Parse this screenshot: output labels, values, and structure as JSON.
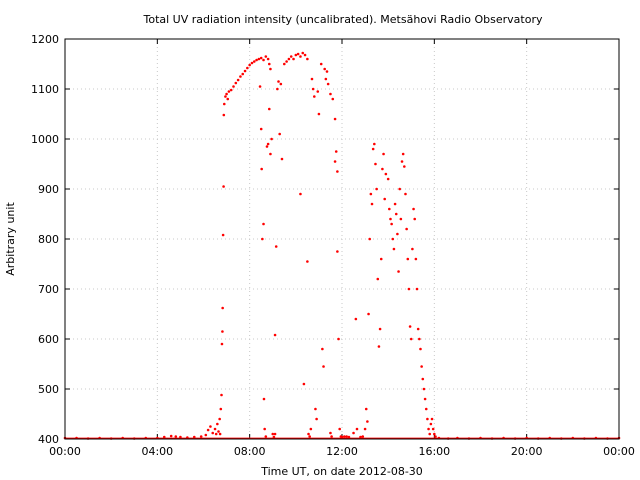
{
  "chart_data": {
    "type": "scatter",
    "title": "Total UV radiation intensity (uncalibrated). Metsähovi Radio Observatory",
    "xlabel": "Time UT, on date 2012-08-30",
    "ylabel": "Arbitrary unit",
    "xlim": [
      0,
      24
    ],
    "ylim": [
      400,
      1200
    ],
    "x_ticks": [
      {
        "value": 0,
        "label": "00:00"
      },
      {
        "value": 4,
        "label": "04:00"
      },
      {
        "value": 8,
        "label": "08:00"
      },
      {
        "value": 12,
        "label": "12:00"
      },
      {
        "value": 16,
        "label": "16:00"
      },
      {
        "value": 20,
        "label": "20:00"
      },
      {
        "value": 24,
        "label": "00:00"
      }
    ],
    "y_ticks": [
      400,
      500,
      600,
      700,
      800,
      900,
      1000,
      1100,
      1200
    ],
    "grid": true,
    "marker_color": "#ff0000",
    "series": [
      {
        "points": [
          [
            0.0,
            402
          ],
          [
            0.5,
            402
          ],
          [
            1.0,
            401
          ],
          [
            1.5,
            402
          ],
          [
            2.0,
            401
          ],
          [
            2.5,
            402
          ],
          [
            3.0,
            401
          ],
          [
            3.5,
            402
          ],
          [
            4.0,
            402
          ],
          [
            4.3,
            404
          ],
          [
            4.6,
            406
          ],
          [
            4.8,
            405
          ],
          [
            5.0,
            404
          ],
          [
            5.3,
            403
          ],
          [
            5.6,
            404
          ],
          [
            5.9,
            405
          ],
          [
            6.1,
            408
          ],
          [
            6.2,
            418
          ],
          [
            6.3,
            425
          ],
          [
            6.4,
            412
          ],
          [
            6.5,
            420
          ],
          [
            6.55,
            410
          ],
          [
            6.6,
            430
          ],
          [
            6.65,
            415
          ],
          [
            6.7,
            440
          ],
          [
            6.72,
            410
          ],
          [
            6.75,
            460
          ],
          [
            6.78,
            488
          ],
          [
            6.8,
            590
          ],
          [
            6.82,
            615
          ],
          [
            6.83,
            662
          ],
          [
            6.85,
            808
          ],
          [
            6.87,
            905
          ],
          [
            6.88,
            1048
          ],
          [
            6.9,
            1070
          ],
          [
            6.95,
            1085
          ],
          [
            7.0,
            1090
          ],
          [
            7.05,
            1080
          ],
          [
            7.1,
            1095
          ],
          [
            7.2,
            1098
          ],
          [
            7.3,
            1105
          ],
          [
            7.4,
            1112
          ],
          [
            7.5,
            1118
          ],
          [
            7.6,
            1125
          ],
          [
            7.7,
            1130
          ],
          [
            7.8,
            1136
          ],
          [
            7.9,
            1142
          ],
          [
            8.0,
            1148
          ],
          [
            8.1,
            1152
          ],
          [
            8.2,
            1155
          ],
          [
            8.3,
            1158
          ],
          [
            8.4,
            1160
          ],
          [
            8.5,
            1162
          ],
          [
            8.6,
            1158
          ],
          [
            8.7,
            1165
          ],
          [
            8.8,
            1160
          ],
          [
            8.85,
            1150
          ],
          [
            8.9,
            1140
          ],
          [
            8.45,
            1105
          ],
          [
            8.5,
            1020
          ],
          [
            8.52,
            940
          ],
          [
            8.55,
            800
          ],
          [
            8.6,
            830
          ],
          [
            8.62,
            480
          ],
          [
            8.65,
            420
          ],
          [
            8.7,
            405
          ],
          [
            8.75,
            985
          ],
          [
            8.8,
            990
          ],
          [
            8.85,
            1060
          ],
          [
            8.9,
            970
          ],
          [
            8.95,
            1000
          ],
          [
            9.0,
            410
          ],
          [
            9.05,
            404
          ],
          [
            9.1,
            410
          ],
          [
            9.1,
            608
          ],
          [
            9.15,
            785
          ],
          [
            9.2,
            1100
          ],
          [
            9.25,
            1115
          ],
          [
            9.3,
            1010
          ],
          [
            9.35,
            1110
          ],
          [
            9.4,
            960
          ],
          [
            9.5,
            1150
          ],
          [
            9.6,
            1155
          ],
          [
            9.7,
            1160
          ],
          [
            9.8,
            1165
          ],
          [
            9.9,
            1160
          ],
          [
            10.0,
            1168
          ],
          [
            10.1,
            1170
          ],
          [
            10.2,
            1165
          ],
          [
            10.3,
            1172
          ],
          [
            10.4,
            1168
          ],
          [
            10.5,
            1160
          ],
          [
            10.2,
            890
          ],
          [
            10.35,
            510
          ],
          [
            10.5,
            755
          ],
          [
            10.55,
            410
          ],
          [
            10.6,
            405
          ],
          [
            10.65,
            420
          ],
          [
            10.7,
            1120
          ],
          [
            10.75,
            1100
          ],
          [
            10.8,
            1085
          ],
          [
            10.85,
            460
          ],
          [
            10.9,
            440
          ],
          [
            10.95,
            1095
          ],
          [
            11.0,
            1050
          ],
          [
            11.1,
            1150
          ],
          [
            11.15,
            580
          ],
          [
            11.2,
            545
          ],
          [
            11.25,
            1140
          ],
          [
            11.3,
            1120
          ],
          [
            11.35,
            1135
          ],
          [
            11.4,
            1110
          ],
          [
            11.5,
            1090
          ],
          [
            11.6,
            1080
          ],
          [
            11.7,
            1040
          ],
          [
            11.5,
            412
          ],
          [
            11.55,
            405
          ],
          [
            11.7,
            955
          ],
          [
            11.75,
            975
          ],
          [
            11.8,
            935
          ],
          [
            11.8,
            775
          ],
          [
            11.85,
            600
          ],
          [
            11.9,
            420
          ],
          [
            11.95,
            405
          ],
          [
            12.0,
            404
          ],
          [
            12.1,
            405
          ],
          [
            12.2,
            405
          ],
          [
            12.3,
            404
          ],
          [
            12.5,
            412
          ],
          [
            12.6,
            640
          ],
          [
            12.65,
            420
          ],
          [
            12.8,
            404
          ],
          [
            12.9,
            405
          ],
          [
            13.0,
            420
          ],
          [
            13.05,
            460
          ],
          [
            13.1,
            435
          ],
          [
            13.15,
            650
          ],
          [
            13.2,
            800
          ],
          [
            13.25,
            890
          ],
          [
            13.3,
            870
          ],
          [
            13.35,
            980
          ],
          [
            13.4,
            990
          ],
          [
            13.45,
            950
          ],
          [
            13.5,
            900
          ],
          [
            13.55,
            720
          ],
          [
            13.6,
            585
          ],
          [
            13.65,
            620
          ],
          [
            13.7,
            760
          ],
          [
            13.75,
            940
          ],
          [
            13.8,
            970
          ],
          [
            13.85,
            880
          ],
          [
            13.9,
            930
          ],
          [
            14.0,
            920
          ],
          [
            14.05,
            860
          ],
          [
            14.1,
            840
          ],
          [
            14.15,
            830
          ],
          [
            14.2,
            800
          ],
          [
            14.25,
            780
          ],
          [
            14.3,
            870
          ],
          [
            14.35,
            850
          ],
          [
            14.4,
            810
          ],
          [
            14.45,
            735
          ],
          [
            14.5,
            900
          ],
          [
            14.55,
            840
          ],
          [
            14.6,
            955
          ],
          [
            14.65,
            970
          ],
          [
            14.7,
            945
          ],
          [
            14.75,
            890
          ],
          [
            14.8,
            820
          ],
          [
            14.85,
            760
          ],
          [
            14.9,
            700
          ],
          [
            14.95,
            625
          ],
          [
            15.0,
            600
          ],
          [
            15.05,
            780
          ],
          [
            15.1,
            860
          ],
          [
            15.15,
            840
          ],
          [
            15.2,
            760
          ],
          [
            15.25,
            700
          ],
          [
            15.3,
            620
          ],
          [
            15.35,
            600
          ],
          [
            15.4,
            580
          ],
          [
            15.45,
            545
          ],
          [
            15.5,
            520
          ],
          [
            15.55,
            500
          ],
          [
            15.6,
            480
          ],
          [
            15.65,
            460
          ],
          [
            15.7,
            440
          ],
          [
            15.75,
            420
          ],
          [
            15.8,
            410
          ],
          [
            15.85,
            430
          ],
          [
            15.9,
            440
          ],
          [
            15.95,
            420
          ],
          [
            16.0,
            410
          ],
          [
            16.05,
            405
          ],
          [
            16.2,
            402
          ],
          [
            16.6,
            401
          ],
          [
            17.0,
            402
          ],
          [
            17.5,
            401
          ],
          [
            18.0,
            402
          ],
          [
            18.5,
            401
          ],
          [
            19.0,
            402
          ],
          [
            19.5,
            401
          ],
          [
            20.0,
            402
          ],
          [
            20.5,
            401
          ],
          [
            21.0,
            402
          ],
          [
            21.5,
            401
          ],
          [
            22.0,
            402
          ],
          [
            22.5,
            401
          ],
          [
            23.0,
            402
          ],
          [
            23.5,
            401
          ],
          [
            24.0,
            402
          ]
        ]
      }
    ]
  }
}
